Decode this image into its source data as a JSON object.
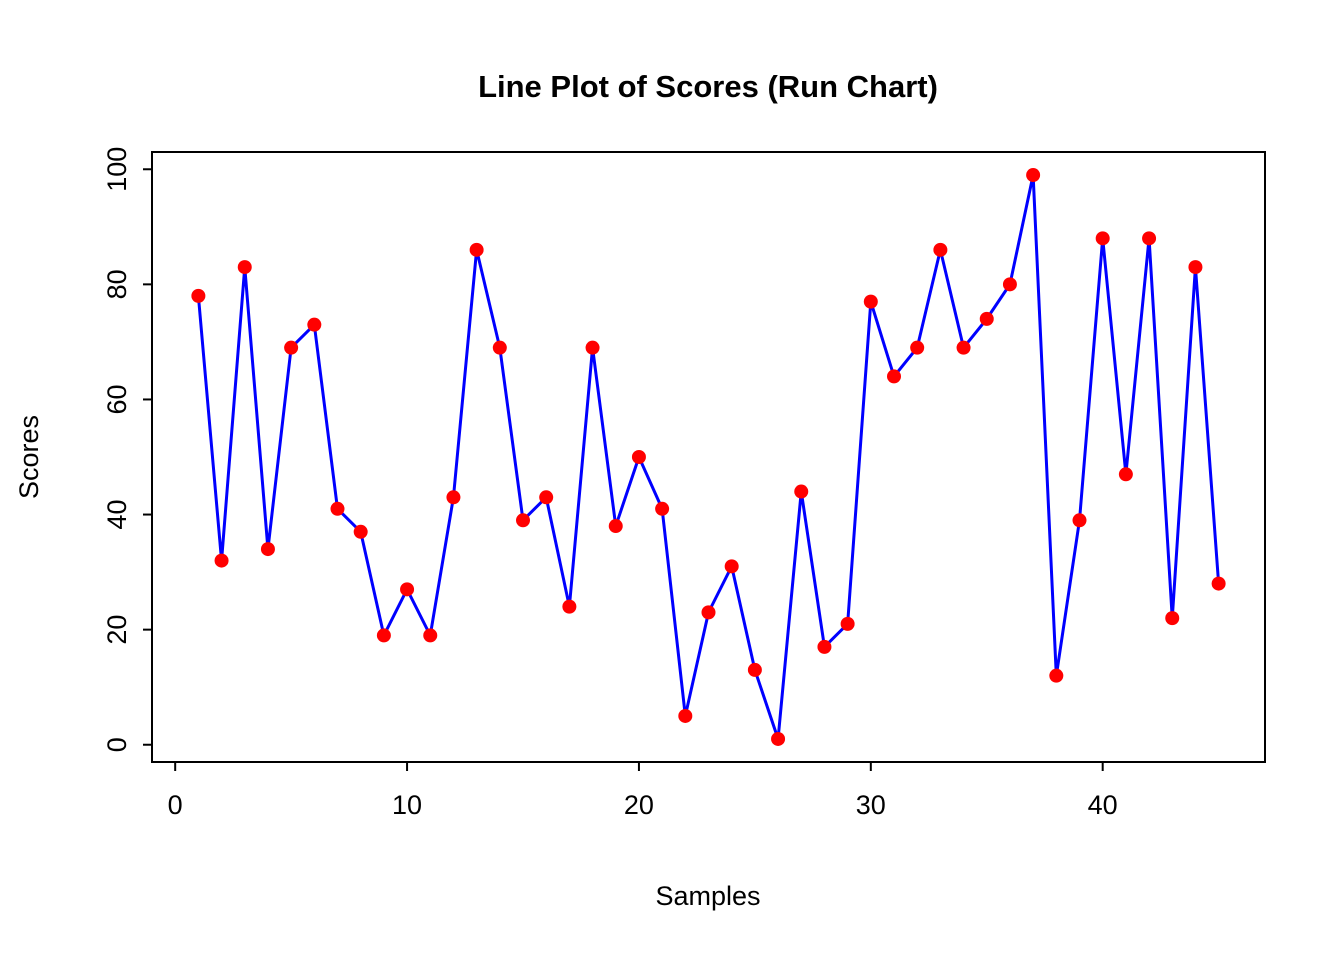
{
  "chart_data": {
    "type": "line",
    "title": "Line Plot of Scores (Run Chart)",
    "xlabel": "Samples",
    "ylabel": "Scores",
    "x": [
      1,
      2,
      3,
      4,
      5,
      6,
      7,
      8,
      9,
      10,
      11,
      12,
      13,
      14,
      15,
      16,
      17,
      18,
      19,
      20,
      21,
      22,
      23,
      24,
      25,
      26,
      27,
      28,
      29,
      30,
      31,
      32,
      33,
      34,
      35,
      36,
      37,
      38,
      39,
      40,
      41,
      42,
      43,
      44,
      45
    ],
    "values": [
      78,
      32,
      83,
      34,
      69,
      73,
      41,
      37,
      19,
      27,
      19,
      43,
      86,
      69,
      39,
      43,
      24,
      69,
      38,
      50,
      41,
      5,
      23,
      31,
      13,
      1,
      44,
      17,
      21,
      77,
      64,
      69,
      86,
      69,
      74,
      80,
      99,
      12,
      39,
      88,
      47,
      88,
      22,
      83,
      28
    ],
    "xlim": [
      -1,
      47
    ],
    "ylim": [
      -3,
      103
    ],
    "xticks": [
      0,
      10,
      20,
      30,
      40
    ],
    "yticks": [
      0,
      20,
      40,
      60,
      80,
      100
    ],
    "line_color": "#0000ff",
    "point_color": "#ff0000",
    "axis_color": "#000000",
    "background": "#ffffff",
    "grid": false,
    "legend": "none"
  }
}
